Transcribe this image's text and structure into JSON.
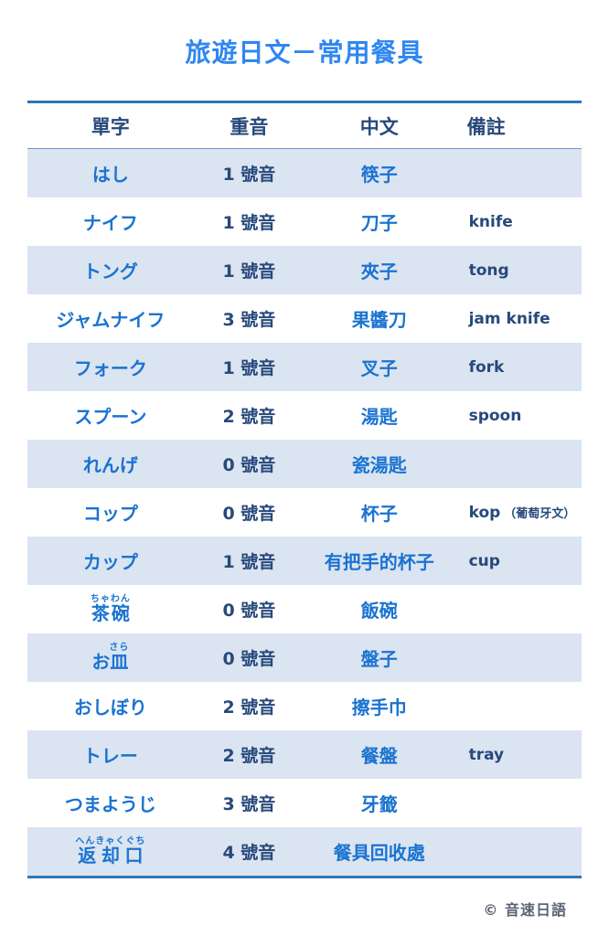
{
  "page": {
    "title": "旅遊日文－常用餐具",
    "copyright": "© 音速日語"
  },
  "colors": {
    "title_blue": "#2f87f0",
    "word_blue": "#1a73d1",
    "navy_text": "#27497b",
    "band_blue": "#dbe4f1",
    "border_blue": "#2e75b6",
    "copyright_gray": "#5a6375"
  },
  "table": {
    "headers": [
      "單字",
      "重音",
      "中文",
      "備註"
    ],
    "rows": [
      {
        "word": "はし",
        "accent": "1 號音",
        "chinese": "筷子",
        "note": ""
      },
      {
        "word": "ナイフ",
        "accent": "1 號音",
        "chinese": "刀子",
        "note": "knife"
      },
      {
        "word": "トング",
        "accent": "1 號音",
        "chinese": "夾子",
        "note": "tong"
      },
      {
        "word": "ジャムナイフ",
        "accent": "3 號音",
        "chinese": "果醬刀",
        "note": "jam knife"
      },
      {
        "word": "フォーク",
        "accent": "1 號音",
        "chinese": "叉子",
        "note": "fork"
      },
      {
        "word": "スプーン",
        "accent": "2 號音",
        "chinese": "湯匙",
        "note": "spoon"
      },
      {
        "word": "れんげ",
        "accent": "0 號音",
        "chinese": "瓷湯匙",
        "note": ""
      },
      {
        "word": "コップ",
        "accent": "0 號音",
        "chinese": "杯子",
        "note": "kop",
        "note_small": "（葡萄牙文）"
      },
      {
        "word": "カップ",
        "accent": "1 號音",
        "chinese": "有把手的杯子",
        "note": "cup"
      },
      {
        "word": "茶碗",
        "ruby": "ちゃわん",
        "accent": "0 號音",
        "chinese": "飯碗",
        "note": ""
      },
      {
        "word_prefix": "お",
        "word": "皿",
        "ruby": "さら",
        "accent": "0 號音",
        "chinese": "盤子",
        "note": ""
      },
      {
        "word": "おしぼり",
        "accent": "2 號音",
        "chinese": "擦手巾",
        "note": ""
      },
      {
        "word": "トレー",
        "accent": "2 號音",
        "chinese": "餐盤",
        "note": "tray"
      },
      {
        "word": "つまようじ",
        "accent": "3 號音",
        "chinese": "牙籤",
        "note": ""
      },
      {
        "word": "返却口",
        "ruby": "へんきゃくぐち",
        "accent": "4 號音",
        "chinese": "餐具回收處",
        "note": ""
      }
    ]
  }
}
